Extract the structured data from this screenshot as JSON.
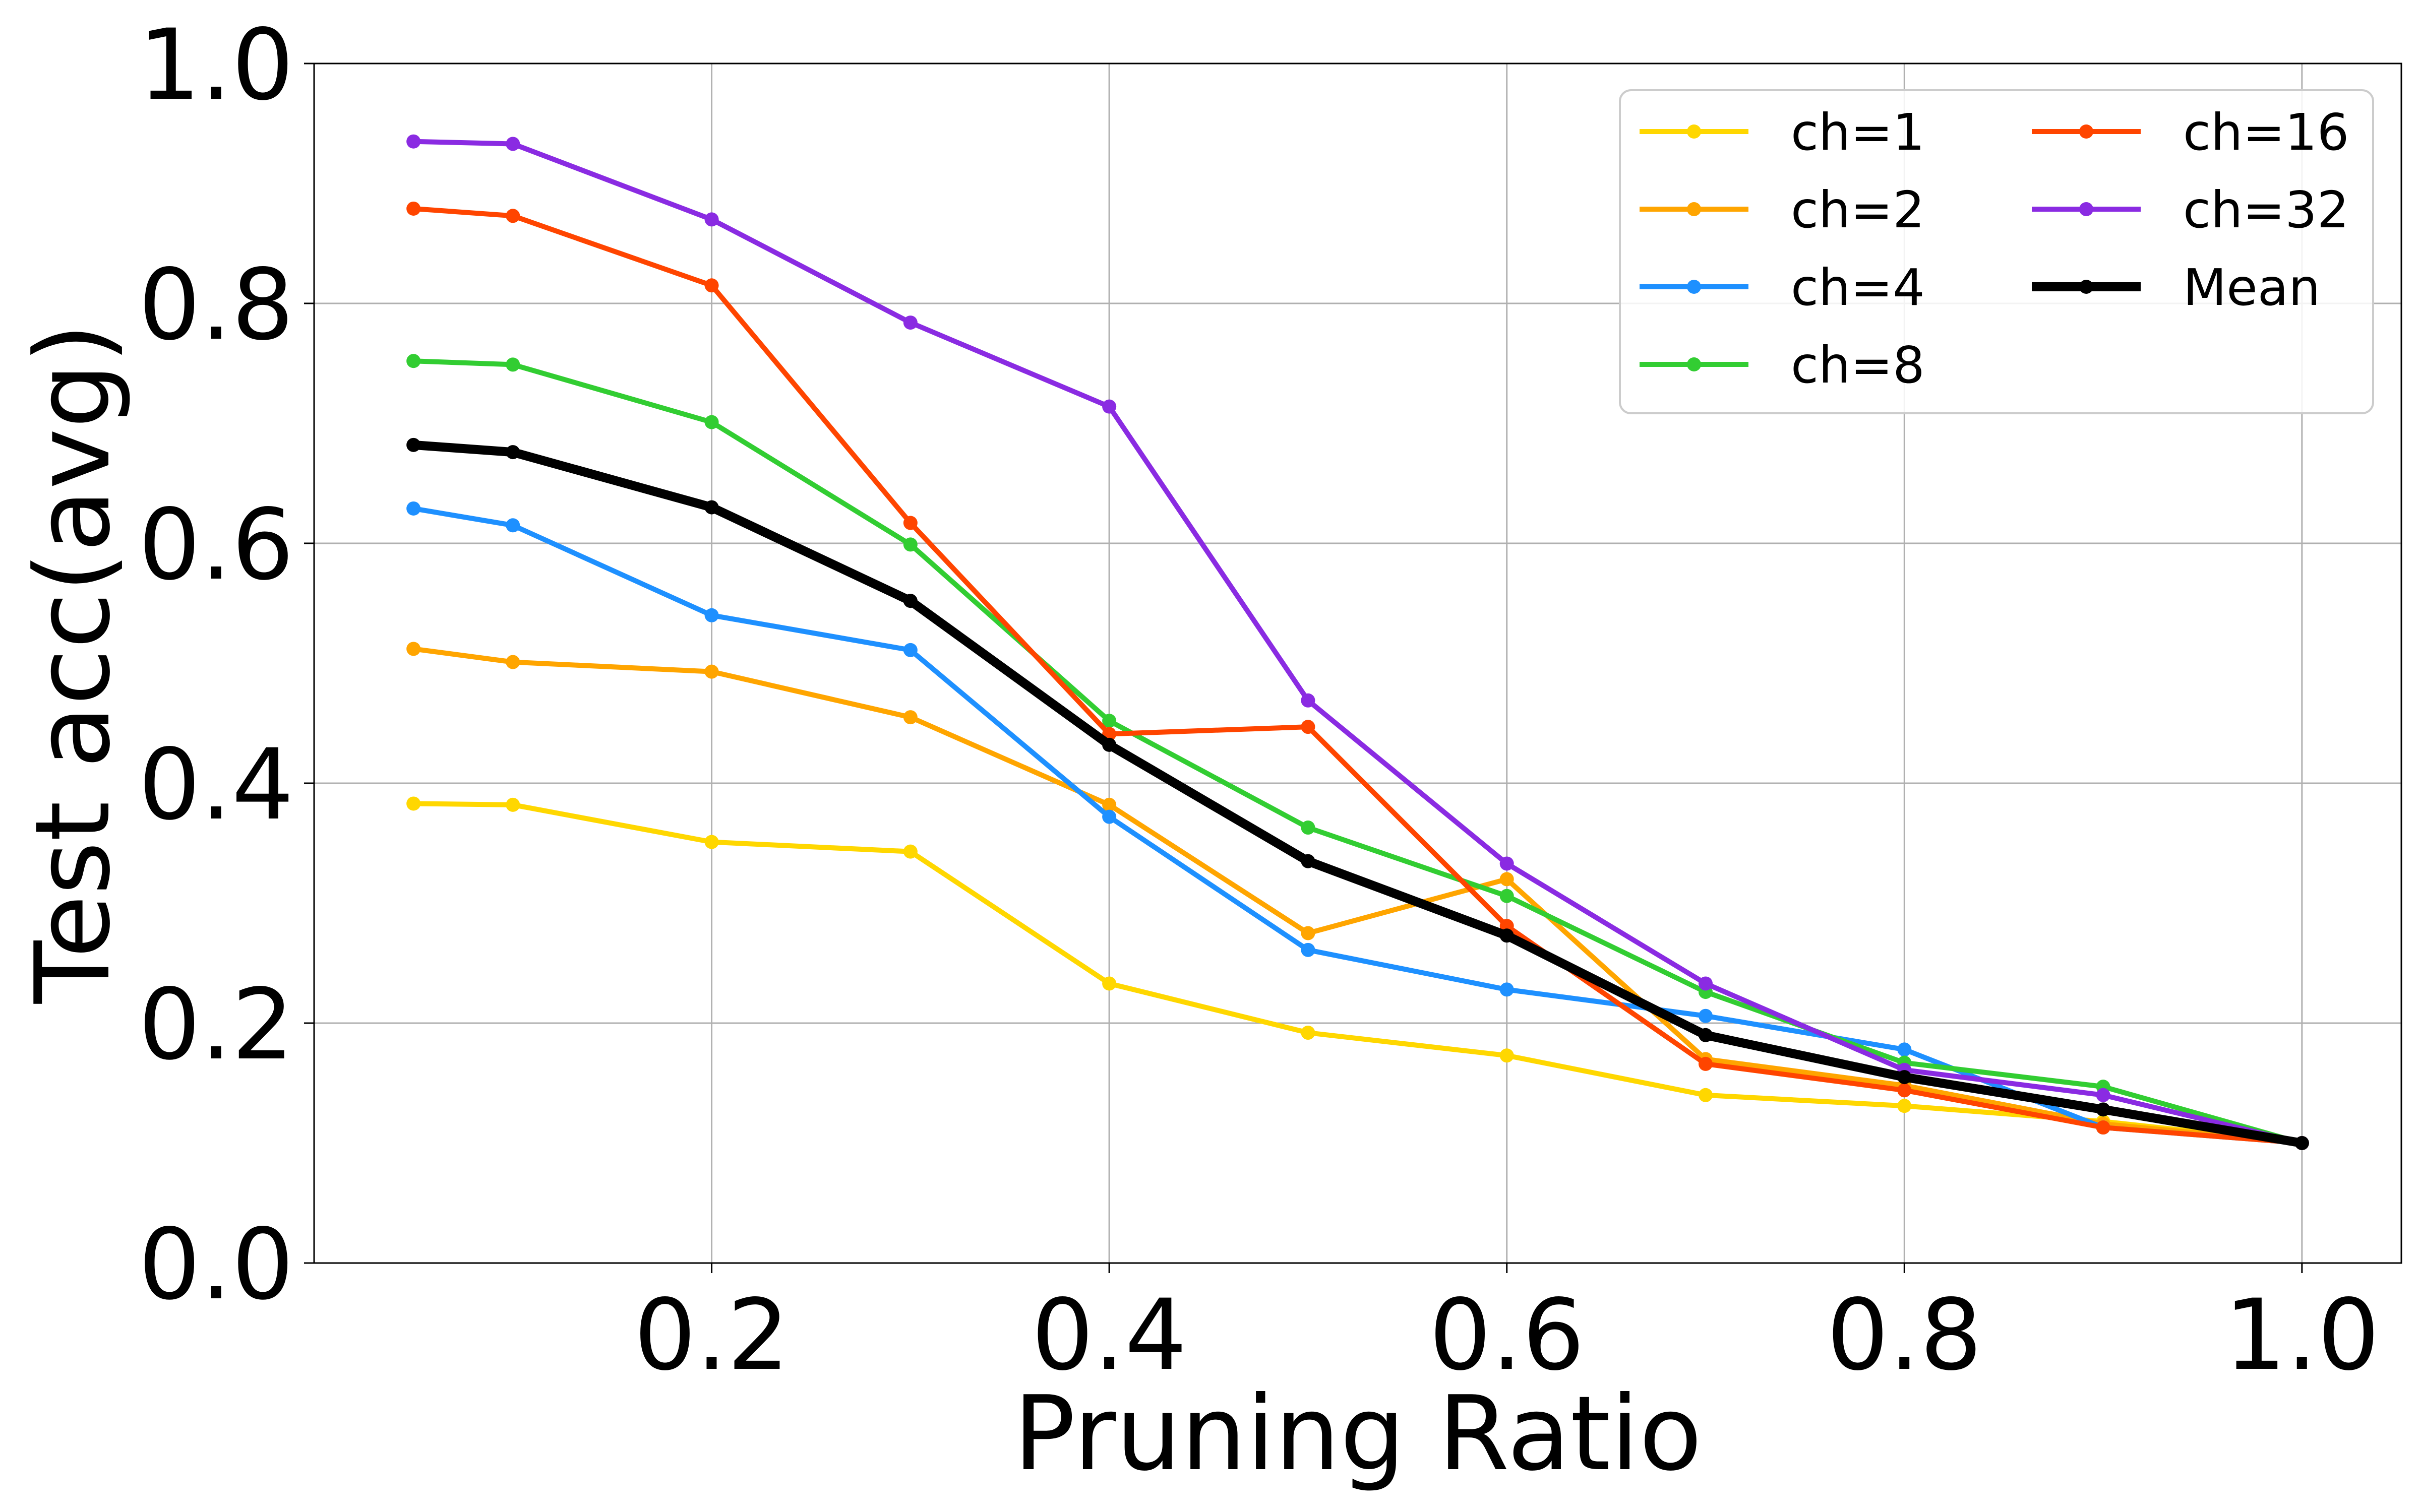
{
  "chart_data": {
    "type": "line",
    "title": "",
    "xlabel": "Pruning Ratio",
    "ylabel": "Test acc(avg)",
    "xlim": [
      0.0,
      1.05
    ],
    "ylim": [
      0.0,
      1.0
    ],
    "xticks": [
      "0.2",
      "0.4",
      "0.6",
      "0.8",
      "1.0"
    ],
    "yticks": [
      "0.0",
      "0.2",
      "0.4",
      "0.6",
      "0.8",
      "1.0"
    ],
    "grid": true,
    "legend_position": "top-right",
    "x": [
      0.05,
      0.1,
      0.2,
      0.3,
      0.4,
      0.5,
      0.6,
      0.7,
      0.8,
      0.9,
      1.0
    ],
    "series": [
      {
        "name": "ch=1",
        "color": "#FFD700",
        "values": [
          0.383,
          0.382,
          0.351,
          0.343,
          0.233,
          0.192,
          0.173,
          0.14,
          0.131,
          0.118,
          0.1
        ]
      },
      {
        "name": "ch=2",
        "color": "#FFA500",
        "values": [
          0.512,
          0.501,
          0.493,
          0.455,
          0.382,
          0.275,
          0.32,
          0.17,
          0.148,
          0.116,
          0.1
        ]
      },
      {
        "name": "ch=4",
        "color": "#1E90FF",
        "values": [
          0.629,
          0.615,
          0.54,
          0.511,
          0.372,
          0.261,
          0.228,
          0.206,
          0.178,
          0.113,
          0.1
        ]
      },
      {
        "name": "ch=8",
        "color": "#32CD32",
        "values": [
          0.752,
          0.749,
          0.701,
          0.599,
          0.452,
          0.363,
          0.306,
          0.226,
          0.167,
          0.147,
          0.1
        ]
      },
      {
        "name": "ch=16",
        "color": "#FF4500",
        "values": [
          0.879,
          0.873,
          0.815,
          0.617,
          0.441,
          0.447,
          0.281,
          0.166,
          0.144,
          0.113,
          0.1
        ]
      },
      {
        "name": "ch=32",
        "color": "#8A2BE2",
        "values": [
          0.935,
          0.933,
          0.87,
          0.784,
          0.714,
          0.469,
          0.333,
          0.233,
          0.161,
          0.14,
          0.1
        ]
      },
      {
        "name": "Mean",
        "color": "#000000",
        "values": [
          0.682,
          0.676,
          0.63,
          0.552,
          0.432,
          0.335,
          0.273,
          0.19,
          0.155,
          0.128,
          0.1
        ]
      }
    ]
  }
}
